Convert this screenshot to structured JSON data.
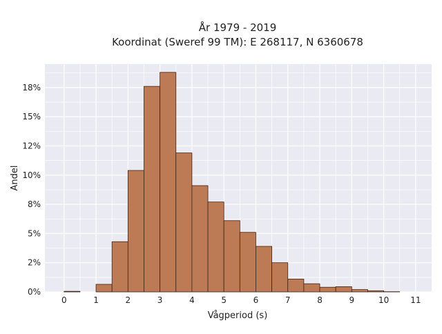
{
  "chart_data": {
    "type": "bar",
    "title": "År 1979 - 2019",
    "subtitle": "Koordinat (Sweref 99 TM): E 268117, N 6360678",
    "xlabel": "Vågperiod (s)",
    "ylabel": "Andel",
    "bin_width": 0.5,
    "bins": [
      {
        "x0": 0.0,
        "value": 0.05
      },
      {
        "x0": 0.5,
        "value": 0.0
      },
      {
        "x0": 1.0,
        "value": 0.65
      },
      {
        "x0": 1.5,
        "value": 4.3
      },
      {
        "x0": 2.0,
        "value": 10.4
      },
      {
        "x0": 2.5,
        "value": 17.6
      },
      {
        "x0": 3.0,
        "value": 18.8
      },
      {
        "x0": 3.5,
        "value": 11.9
      },
      {
        "x0": 4.0,
        "value": 9.1
      },
      {
        "x0": 4.5,
        "value": 7.7
      },
      {
        "x0": 5.0,
        "value": 6.1
      },
      {
        "x0": 5.5,
        "value": 5.1
      },
      {
        "x0": 6.0,
        "value": 3.9
      },
      {
        "x0": 6.5,
        "value": 2.5
      },
      {
        "x0": 7.0,
        "value": 1.1
      },
      {
        "x0": 7.5,
        "value": 0.7
      },
      {
        "x0": 8.0,
        "value": 0.4
      },
      {
        "x0": 8.5,
        "value": 0.45
      },
      {
        "x0": 9.0,
        "value": 0.2
      },
      {
        "x0": 9.5,
        "value": 0.1
      },
      {
        "x0": 10.0,
        "value": 0.02
      }
    ],
    "xlim": [
      -0.6,
      11.5
    ],
    "ylim": [
      0,
      19.5
    ],
    "xticks": [
      {
        "value": 0,
        "label": "0"
      },
      {
        "value": 1,
        "label": "1"
      },
      {
        "value": 2,
        "label": "2"
      },
      {
        "value": 3,
        "label": "3"
      },
      {
        "value": 4,
        "label": "4"
      },
      {
        "value": 5,
        "label": "5"
      },
      {
        "value": 6,
        "label": "6"
      },
      {
        "value": 7,
        "label": "7"
      },
      {
        "value": 8,
        "label": "8"
      },
      {
        "value": 9,
        "label": "9"
      },
      {
        "value": 10,
        "label": "10"
      },
      {
        "value": 11,
        "label": "11"
      }
    ],
    "yticks": [
      {
        "value": 0,
        "label": "0%"
      },
      {
        "value": 2.5,
        "label": "2%"
      },
      {
        "value": 5,
        "label": "5%"
      },
      {
        "value": 7.5,
        "label": "8%"
      },
      {
        "value": 10,
        "label": "10%"
      },
      {
        "value": 12.5,
        "label": "12%"
      },
      {
        "value": 15,
        "label": "15%"
      },
      {
        "value": 17.5,
        "label": "18%"
      }
    ],
    "grid": true,
    "colors": {
      "bar_fill": "#bd7b55",
      "bar_edge": "#3b2418",
      "plot_background": "#eaeaf2",
      "grid": "#ffffff"
    }
  }
}
